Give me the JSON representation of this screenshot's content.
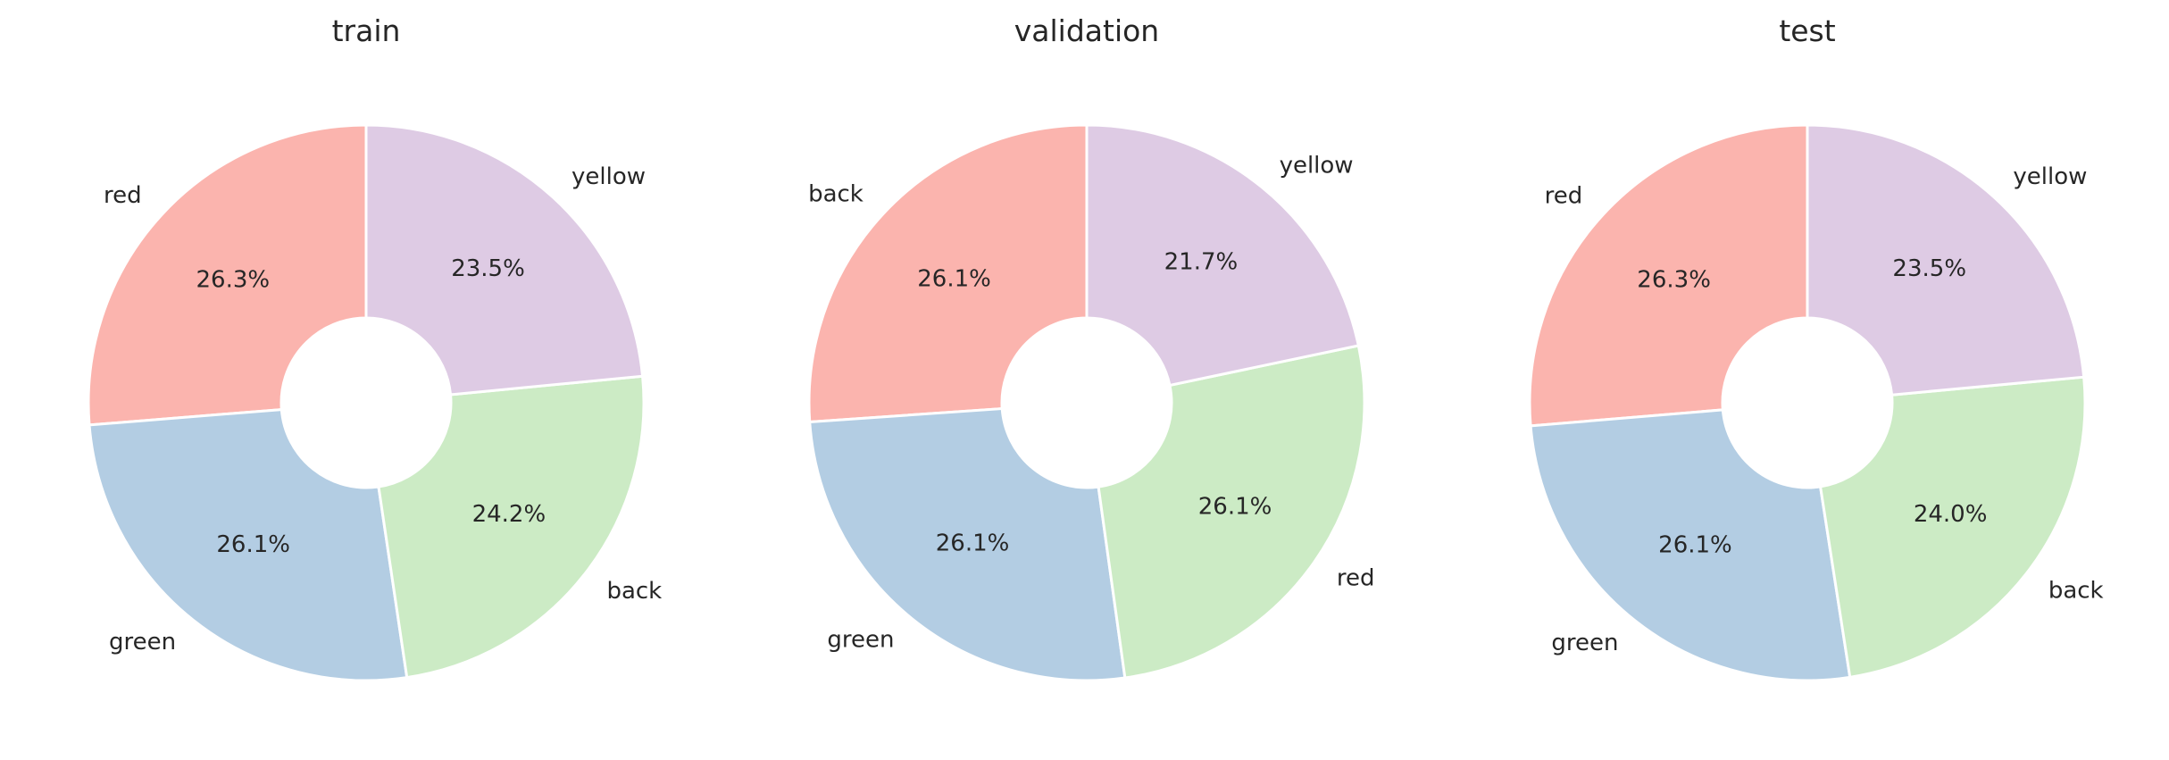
{
  "chart_data": [
    {
      "type": "pie",
      "title": "train",
      "donut": true,
      "categories": [
        "red",
        "green",
        "back",
        "yellow"
      ],
      "values": [
        26.3,
        26.1,
        24.2,
        23.5
      ],
      "value_labels": [
        "26.3%",
        "26.1%",
        "24.2%",
        "23.5%"
      ],
      "colors": [
        "#fbb4ae",
        "#b3cde3",
        "#ccebc5",
        "#decbe4"
      ]
    },
    {
      "type": "pie",
      "title": "validation",
      "donut": true,
      "categories": [
        "back",
        "green",
        "red",
        "yellow"
      ],
      "values": [
        26.1,
        26.1,
        26.1,
        21.7
      ],
      "value_labels": [
        "26.1%",
        "26.1%",
        "26.1%",
        "21.7%"
      ],
      "colors": [
        "#fbb4ae",
        "#b3cde3",
        "#ccebc5",
        "#decbe4"
      ]
    },
    {
      "type": "pie",
      "title": "test",
      "donut": true,
      "categories": [
        "red",
        "green",
        "back",
        "yellow"
      ],
      "values": [
        26.3,
        26.1,
        24.0,
        23.5
      ],
      "value_labels": [
        "26.3%",
        "26.1%",
        "24.0%",
        "23.5%"
      ],
      "colors": [
        "#fbb4ae",
        "#b3cde3",
        "#ccebc5",
        "#decbe4"
      ]
    }
  ]
}
